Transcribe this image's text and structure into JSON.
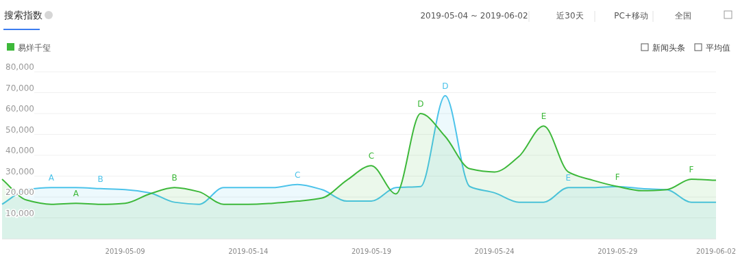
{
  "chart_data": {
    "type": "area",
    "title": "搜索指数",
    "annotations": [
      "2019-05-04 ~ 2019-06-02",
      "近30天",
      "PC+移动",
      "全国",
      "新闻头条",
      "平均值",
      {
        "text": "A",
        "x": "2019-05-06",
        "y": 24500
      },
      {
        "text": "B",
        "x": "2019-05-08",
        "y": 24000
      },
      {
        "text": "C",
        "x": "2019-05-16",
        "y": 26000
      },
      {
        "text": "D",
        "x": "2019-05-22",
        "y": 68500
      },
      {
        "text": "E",
        "x": "2019-05-27",
        "y": 24500
      },
      {
        "text": "F",
        "x": "2019-05-29",
        "y": 25000
      },
      {
        "text": "A",
        "x": "2019-05-07",
        "y": 17000
      },
      {
        "text": "B",
        "x": "2019-05-11",
        "y": 24500
      },
      {
        "text": "C",
        "x": "2019-05-19",
        "y": 35000
      },
      {
        "text": "D",
        "x": "2019-05-21",
        "y": 60000
      },
      {
        "text": "E",
        "x": "2019-05-26",
        "y": 54000
      },
      {
        "text": "F",
        "x": "2019-06-01",
        "y": 28500
      }
    ],
    "x": [
      "2019-05-04",
      "2019-05-05",
      "2019-05-06",
      "2019-05-07",
      "2019-05-08",
      "2019-05-09",
      "2019-05-10",
      "2019-05-11",
      "2019-05-12",
      "2019-05-13",
      "2019-05-14",
      "2019-05-15",
      "2019-05-16",
      "2019-05-17",
      "2019-05-18",
      "2019-05-19",
      "2019-05-20",
      "2019-05-21",
      "2019-05-22",
      "2019-05-23",
      "2019-05-24",
      "2019-05-25",
      "2019-05-26",
      "2019-05-27",
      "2019-05-28",
      "2019-05-29",
      "2019-05-30",
      "2019-05-31",
      "2019-06-01",
      "2019-06-02"
    ],
    "series": [
      {
        "color": "#4cc3ea",
        "values": [
          16500,
          23500,
          24500,
          24500,
          24000,
          23500,
          22000,
          17500,
          16500,
          24500,
          24500,
          24500,
          26000,
          23500,
          18000,
          18000,
          24500,
          25000,
          68500,
          25000,
          22000,
          17500,
          17500,
          24500,
          24500,
          25000,
          24000,
          23500,
          17500,
          17500
        ]
      },
      {
        "name": "易烊千玺",
        "color": "#3db83a",
        "values": [
          28500,
          18500,
          16500,
          17000,
          16500,
          17000,
          21500,
          24500,
          22500,
          16500,
          16500,
          17000,
          18000,
          19500,
          28000,
          35000,
          21500,
          60000,
          49000,
          33500,
          32000,
          39500,
          54000,
          32000,
          28000,
          25000,
          23000,
          23500,
          28500,
          28000
        ]
      }
    ],
    "xlim": [
      "2019-05-04",
      "2019-06-02"
    ],
    "xticks": [
      "2019-05-09",
      "2019-05-14",
      "2019-05-19",
      "2019-05-24",
      "2019-05-29",
      "2019-06-02"
    ],
    "ylim": [
      0,
      80000
    ],
    "yticks": [
      {
        "value": 10000,
        "label": "10,000"
      },
      {
        "value": 20000,
        "label": "20,000"
      },
      {
        "value": 30000,
        "label": "30,000"
      },
      {
        "value": 40000,
        "label": "40,000"
      },
      {
        "value": 50000,
        "label": "50,000"
      },
      {
        "value": 60000,
        "label": "60,000"
      },
      {
        "value": 70000,
        "label": "70,000"
      },
      {
        "value": 80000,
        "label": "80,000"
      }
    ],
    "grid": "y",
    "legend": "top left"
  }
}
